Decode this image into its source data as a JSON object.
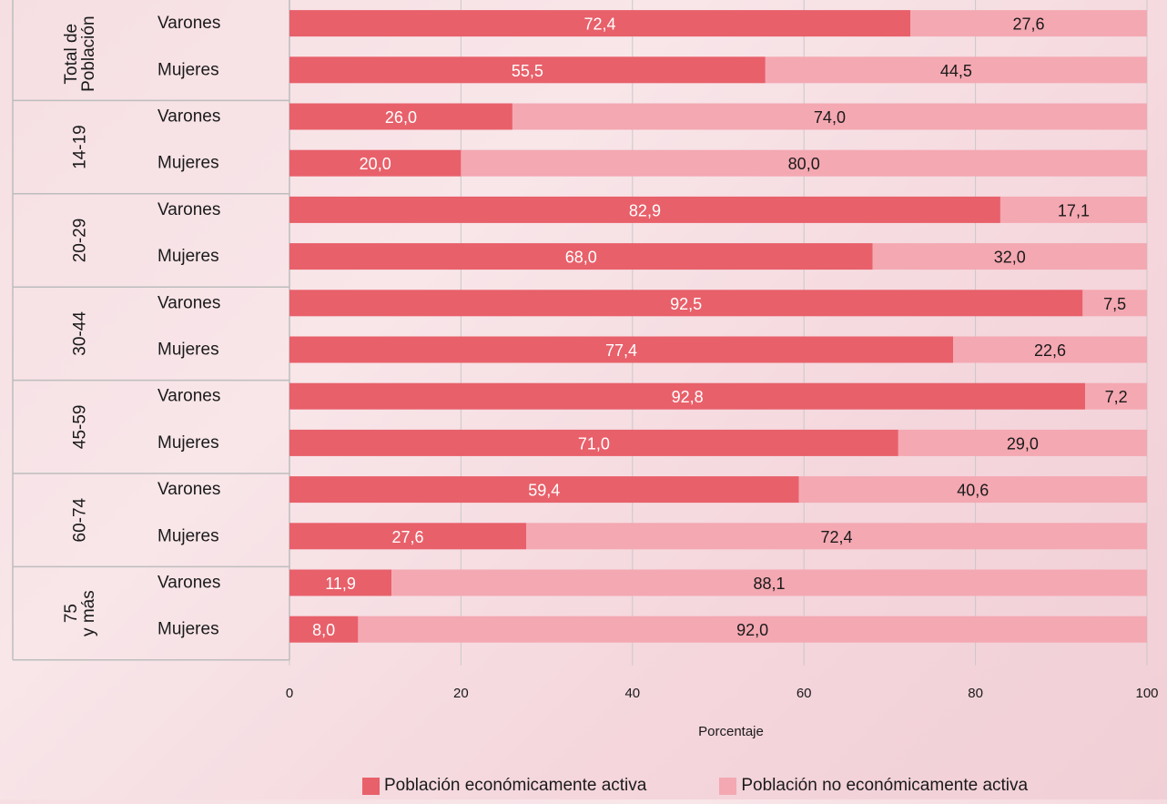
{
  "colors": {
    "active": "#e8606a",
    "inactive": "#f4a8b2",
    "background": "#f6dfe3",
    "grid": "#c9c9c9",
    "frame": "#bdbdbd"
  },
  "chart_data": {
    "type": "bar",
    "orientation": "horizontal",
    "stacked": true,
    "xlabel": "Porcentaje",
    "xlim": [
      0,
      100
    ],
    "xticks": [
      "0",
      "20",
      "40",
      "60",
      "80",
      "100"
    ],
    "grid": true,
    "legend_position": "bottom",
    "groups": [
      {
        "label": "Total de Población",
        "label_lines": [
          "Total de",
          "Población"
        ],
        "categories": [
          "Varones",
          "Mujeres"
        ]
      },
      {
        "label": "14-19",
        "label_lines": [
          "14-19"
        ],
        "categories": [
          "Varones",
          "Mujeres"
        ]
      },
      {
        "label": "20-29",
        "label_lines": [
          "20-29"
        ],
        "categories": [
          "Varones",
          "Mujeres"
        ]
      },
      {
        "label": "30-44",
        "label_lines": [
          "30-44"
        ],
        "categories": [
          "Varones",
          "Mujeres"
        ]
      },
      {
        "label": "45-59",
        "label_lines": [
          "45-59"
        ],
        "categories": [
          "Varones",
          "Mujeres"
        ]
      },
      {
        "label": "60-74",
        "label_lines": [
          "60-74"
        ],
        "categories": [
          "Varones",
          "Mujeres"
        ]
      },
      {
        "label": "75 y más",
        "label_lines": [
          "75",
          "y más"
        ],
        "categories": [
          "Varones",
          "Mujeres"
        ]
      }
    ],
    "series": [
      {
        "name": "Población económicamente activa",
        "values": [
          72.4,
          55.5,
          26.0,
          20.0,
          82.9,
          68.0,
          92.5,
          77.4,
          92.8,
          71.0,
          59.4,
          27.6,
          11.9,
          8.0
        ],
        "labels": [
          "72,4",
          "55,5",
          "26,0",
          "20,0",
          "82,9",
          "68,0",
          "92,5",
          "77,4",
          "92,8",
          "71,0",
          "59,4",
          "27,6",
          "11,9",
          "8,0"
        ]
      },
      {
        "name": "Población no económicamente activa",
        "values": [
          27.6,
          44.5,
          74.0,
          80.0,
          17.1,
          32.0,
          7.5,
          22.6,
          7.2,
          29.0,
          40.6,
          72.4,
          88.1,
          92.0
        ],
        "labels": [
          "27,6",
          "44,5",
          "74,0",
          "80,0",
          "17,1",
          "32,0",
          "7,5",
          "22,6",
          "7,2",
          "29,0",
          "40,6",
          "72,4",
          "88,1",
          "92,0"
        ]
      }
    ]
  }
}
